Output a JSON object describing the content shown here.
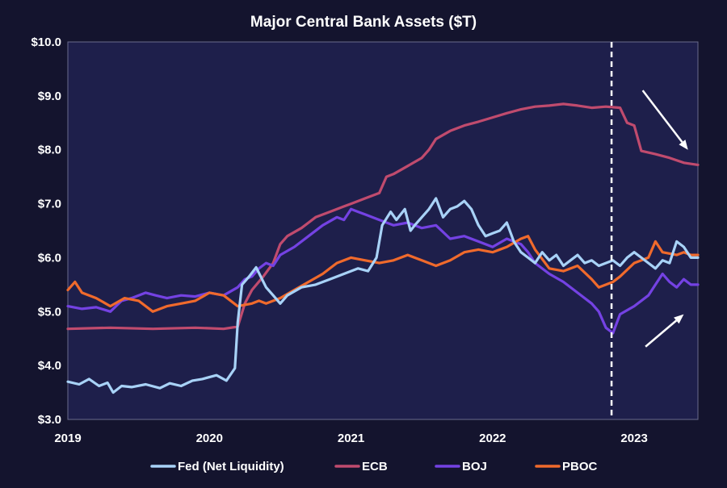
{
  "chart_data": {
    "type": "line",
    "title": "Major Central Bank Assets ($T)",
    "xlabel": "",
    "ylabel": "",
    "xlim": [
      2019.0,
      2023.45
    ],
    "ylim": [
      3.0,
      10.0
    ],
    "x_ticks": [
      2019,
      2020,
      2021,
      2022,
      2023
    ],
    "x_tick_labels": [
      "2019",
      "2020",
      "2021",
      "2022",
      "2023"
    ],
    "y_ticks": [
      3,
      4,
      5,
      6,
      7,
      8,
      9,
      10
    ],
    "y_tick_labels": [
      "$3.0",
      "$4.0",
      "$5.0",
      "$6.0",
      "$7.0",
      "$8.0",
      "$9.0",
      "$10.0"
    ],
    "legend_position": "bottom",
    "grid": false,
    "colors": {
      "background": "#14142e",
      "plot_area": "#1e1f4b",
      "text": "#ffffff",
      "marker_line": "#ffffff"
    },
    "vertical_marker": {
      "x": 2022.84,
      "style": "dashed"
    },
    "arrows": [
      {
        "from": [
          2023.06,
          9.1
        ],
        "to": [
          2023.38,
          8.0
        ],
        "label": ""
      },
      {
        "from": [
          2023.08,
          4.35
        ],
        "to": [
          2023.35,
          4.95
        ],
        "label": ""
      }
    ],
    "series": [
      {
        "name": "Fed (Net Liquidity)",
        "color": "#a8d2f7",
        "x": [
          2019.0,
          2019.08,
          2019.15,
          2019.22,
          2019.28,
          2019.32,
          2019.38,
          2019.45,
          2019.55,
          2019.65,
          2019.72,
          2019.8,
          2019.88,
          2019.95,
          2020.05,
          2020.12,
          2020.18,
          2020.2,
          2020.23,
          2020.28,
          2020.33,
          2020.4,
          2020.45,
          2020.5,
          2020.55,
          2020.65,
          2020.75,
          2020.85,
          2020.95,
          2021.05,
          2021.12,
          2021.18,
          2021.22,
          2021.28,
          2021.32,
          2021.38,
          2021.42,
          2021.45,
          2021.5,
          2021.55,
          2021.6,
          2021.65,
          2021.7,
          2021.75,
          2021.8,
          2021.85,
          2021.9,
          2021.95,
          2022.0,
          2022.05,
          2022.1,
          2022.15,
          2022.2,
          2022.25,
          2022.3,
          2022.35,
          2022.4,
          2022.45,
          2022.5,
          2022.55,
          2022.6,
          2022.65,
          2022.7,
          2022.75,
          2022.8,
          2022.85,
          2022.9,
          2022.95,
          2023.0,
          2023.05,
          2023.1,
          2023.15,
          2023.2,
          2023.25,
          2023.3,
          2023.35,
          2023.4,
          2023.45
        ],
        "values": [
          3.7,
          3.65,
          3.75,
          3.62,
          3.68,
          3.5,
          3.62,
          3.6,
          3.65,
          3.58,
          3.67,
          3.62,
          3.72,
          3.75,
          3.82,
          3.72,
          3.95,
          4.8,
          5.5,
          5.65,
          5.82,
          5.45,
          5.3,
          5.15,
          5.3,
          5.45,
          5.5,
          5.6,
          5.7,
          5.8,
          5.75,
          6.0,
          6.6,
          6.85,
          6.7,
          6.9,
          6.5,
          6.6,
          6.75,
          6.9,
          7.1,
          6.75,
          6.9,
          6.95,
          7.05,
          6.9,
          6.6,
          6.4,
          6.45,
          6.5,
          6.65,
          6.3,
          6.1,
          6.0,
          5.9,
          6.1,
          5.95,
          6.05,
          5.85,
          5.95,
          6.05,
          5.9,
          5.95,
          5.85,
          5.9,
          5.95,
          5.85,
          6.0,
          6.1,
          6.0,
          5.9,
          5.8,
          5.95,
          5.9,
          6.3,
          6.2,
          6.0,
          6.0
        ]
      },
      {
        "name": "ECB",
        "color": "#c04b6e",
        "x": [
          2019.0,
          2019.3,
          2019.6,
          2019.9,
          2020.1,
          2020.2,
          2020.25,
          2020.3,
          2020.38,
          2020.45,
          2020.5,
          2020.55,
          2020.65,
          2020.75,
          2020.85,
          2020.95,
          2021.0,
          2021.1,
          2021.2,
          2021.25,
          2021.3,
          2021.4,
          2021.5,
          2021.55,
          2021.6,
          2021.7,
          2021.8,
          2021.9,
          2022.0,
          2022.1,
          2022.2,
          2022.3,
          2022.4,
          2022.5,
          2022.6,
          2022.7,
          2022.8,
          2022.9,
          2022.95,
          2023.0,
          2023.05,
          2023.15,
          2023.25,
          2023.35,
          2023.45
        ],
        "values": [
          4.68,
          4.7,
          4.68,
          4.7,
          4.68,
          4.72,
          5.15,
          5.4,
          5.65,
          5.9,
          6.25,
          6.4,
          6.55,
          6.75,
          6.85,
          6.95,
          7.0,
          7.1,
          7.2,
          7.5,
          7.55,
          7.7,
          7.85,
          8.0,
          8.2,
          8.35,
          8.45,
          8.52,
          8.6,
          8.68,
          8.75,
          8.8,
          8.82,
          8.85,
          8.82,
          8.78,
          8.8,
          8.78,
          8.5,
          8.45,
          7.98,
          7.92,
          7.85,
          7.76,
          7.72
        ]
      },
      {
        "name": "BOJ",
        "color": "#7442e3",
        "x": [
          2019.0,
          2019.1,
          2019.2,
          2019.3,
          2019.38,
          2019.45,
          2019.55,
          2019.62,
          2019.7,
          2019.8,
          2019.9,
          2020.0,
          2020.1,
          2020.2,
          2020.25,
          2020.3,
          2020.35,
          2020.4,
          2020.45,
          2020.5,
          2020.6,
          2020.7,
          2020.8,
          2020.9,
          2020.95,
          2021.0,
          2021.05,
          2021.1,
          2021.2,
          2021.3,
          2021.4,
          2021.5,
          2021.6,
          2021.7,
          2021.8,
          2021.9,
          2022.0,
          2022.1,
          2022.2,
          2022.25,
          2022.3,
          2022.4,
          2022.5,
          2022.6,
          2022.7,
          2022.75,
          2022.8,
          2022.85,
          2022.9,
          2023.0,
          2023.1,
          2023.15,
          2023.2,
          2023.25,
          2023.3,
          2023.35,
          2023.4,
          2023.45
        ],
        "values": [
          5.1,
          5.05,
          5.08,
          5.0,
          5.2,
          5.25,
          5.35,
          5.3,
          5.25,
          5.3,
          5.28,
          5.35,
          5.3,
          5.45,
          5.6,
          5.65,
          5.8,
          5.9,
          5.85,
          6.05,
          6.2,
          6.4,
          6.6,
          6.75,
          6.7,
          6.9,
          6.85,
          6.8,
          6.7,
          6.6,
          6.65,
          6.55,
          6.6,
          6.35,
          6.4,
          6.3,
          6.2,
          6.35,
          6.25,
          6.1,
          5.9,
          5.7,
          5.55,
          5.35,
          5.15,
          5.0,
          4.7,
          4.6,
          4.95,
          5.1,
          5.3,
          5.5,
          5.7,
          5.55,
          5.45,
          5.6,
          5.5,
          5.5
        ]
      },
      {
        "name": "PBOC",
        "color": "#f06a2c",
        "x": [
          2019.0,
          2019.05,
          2019.1,
          2019.2,
          2019.3,
          2019.4,
          2019.5,
          2019.6,
          2019.7,
          2019.8,
          2019.9,
          2020.0,
          2020.1,
          2020.2,
          2020.3,
          2020.35,
          2020.4,
          2020.5,
          2020.6,
          2020.7,
          2020.8,
          2020.9,
          2021.0,
          2021.1,
          2021.2,
          2021.3,
          2021.4,
          2021.5,
          2021.6,
          2021.7,
          2021.8,
          2021.9,
          2022.0,
          2022.1,
          2022.2,
          2022.25,
          2022.3,
          2022.4,
          2022.5,
          2022.6,
          2022.7,
          2022.75,
          2022.8,
          2022.85,
          2022.9,
          2023.0,
          2023.1,
          2023.15,
          2023.2,
          2023.3,
          2023.35,
          2023.4,
          2023.45
        ],
        "values": [
          5.4,
          5.55,
          5.35,
          5.25,
          5.1,
          5.25,
          5.2,
          5.0,
          5.1,
          5.15,
          5.2,
          5.35,
          5.3,
          5.1,
          5.15,
          5.2,
          5.15,
          5.25,
          5.4,
          5.55,
          5.7,
          5.9,
          6.0,
          5.95,
          5.9,
          5.95,
          6.05,
          5.95,
          5.85,
          5.95,
          6.1,
          6.15,
          6.1,
          6.2,
          6.35,
          6.4,
          6.15,
          5.8,
          5.75,
          5.85,
          5.6,
          5.45,
          5.5,
          5.55,
          5.65,
          5.9,
          6.0,
          6.3,
          6.1,
          6.05,
          6.1,
          6.05,
          6.05
        ]
      }
    ]
  }
}
